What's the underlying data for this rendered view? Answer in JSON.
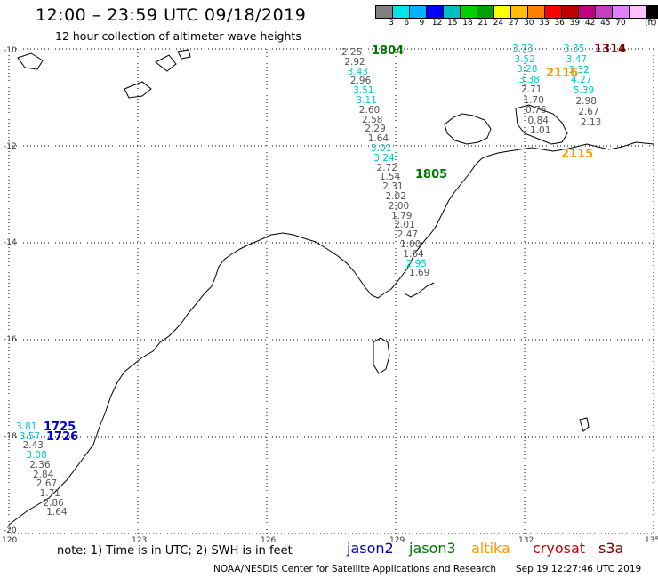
{
  "title": "12:00 – 23:59 UTC 09/18/2019",
  "subtitle": "12 hour collection of altimeter wave heights",
  "legend": {
    "unit": "(ft)",
    "colors": [
      "#808080",
      "#00e5e5",
      "#00b2ff",
      "#0000ff",
      "#00bfbf",
      "#00d000",
      "#00a000",
      "#ffff00",
      "#ffbf00",
      "#ff8000",
      "#ff0000",
      "#c00000",
      "#c00080",
      "#c040c0",
      "#e080ff",
      "#ffc0ff",
      "#000000"
    ],
    "labels": [
      "3",
      "6",
      "9",
      "12",
      "15",
      "18",
      "21",
      "24",
      "27",
      "30",
      "33",
      "36",
      "39",
      "42",
      "45",
      "70"
    ]
  },
  "map": {
    "lat_labels": [
      "-10",
      "-12",
      "-14",
      "-16",
      "-18",
      "-20"
    ],
    "lon_labels": [
      "120",
      "123",
      "126",
      "129",
      "132",
      "135"
    ]
  },
  "note": "note: 1) Time is in UTC; 2) SWH is in feet",
  "satellites": [
    {
      "name": "jason2",
      "color": "#0000cc"
    },
    {
      "name": "jason3",
      "color": "#007700"
    },
    {
      "name": "altika",
      "color": "#ff9900"
    },
    {
      "name": "cryosat",
      "color": "#cc0000"
    },
    {
      "name": "s3a",
      "color": "#770000"
    }
  ],
  "credit": "NOAA/NESDIS Center for Satellite Applications and Research",
  "timestamp": "Sep 19 12:27:46 UTC 2019",
  "passes": [
    {
      "label": "1804",
      "color": "#007700"
    },
    {
      "label": "1805",
      "color": "#007700"
    },
    {
      "label": "1314",
      "color": "#770000"
    },
    {
      "label": "2116",
      "color": "#ff9900"
    },
    {
      "label": "2115",
      "color": "#ff9900"
    },
    {
      "label": "1725",
      "color": "#0000cc"
    },
    {
      "label": "1726",
      "color": "#0000cc"
    }
  ],
  "track_a": [
    "2.25",
    "2.92",
    "3.43",
    "2.96",
    "3.51",
    "3.11",
    "2.60",
    "2.58",
    "2.29",
    "1.64",
    "3.01",
    "3.24",
    "2.72",
    "1.54",
    "2.31",
    "2.02",
    "2.00",
    "1.79",
    "2.01",
    "2.47",
    "1.00",
    "1.64",
    "2.95",
    "1.69"
  ],
  "track_a_colors": [
    "#555",
    "#555",
    "#00cccc",
    "#555",
    "#00cccc",
    "#00cccc",
    "#555",
    "#555",
    "#555",
    "#555",
    "#00cccc",
    "#00cccc",
    "#555",
    "#555",
    "#555",
    "#555",
    "#555",
    "#555",
    "#555",
    "#555",
    "#555",
    "#555",
    "#00cccc",
    "#555"
  ],
  "track_b": [
    "3.73",
    "3.52",
    "3.28",
    "3.38",
    "2.71",
    "1.70",
    "0.76",
    "0.84",
    "1.01"
  ],
  "track_b_colors": [
    "#00cccc",
    "#00cccc",
    "#00cccc",
    "#00cccc",
    "#555",
    "#555",
    "#555",
    "#555",
    "#555"
  ],
  "track_c": [
    "3.35",
    "3.47",
    "3.32",
    "4.27",
    "5.39",
    "2.98",
    "2.67",
    "2.13"
  ],
  "track_c_colors": [
    "#00cccc",
    "#00cccc",
    "#00cccc",
    "#00cccc",
    "#00cccc",
    "#555",
    "#555",
    "#555"
  ],
  "track_d": [
    "3.81",
    "3.57",
    "2.43",
    "3.08",
    "2.36",
    "2.84",
    "2.67",
    "1.71",
    "2.86",
    "1.64"
  ],
  "track_d_colors": [
    "#00cccc",
    "#00cccc",
    "#555",
    "#00cccc",
    "#555",
    "#555",
    "#555",
    "#555",
    "#555",
    "#555"
  ]
}
